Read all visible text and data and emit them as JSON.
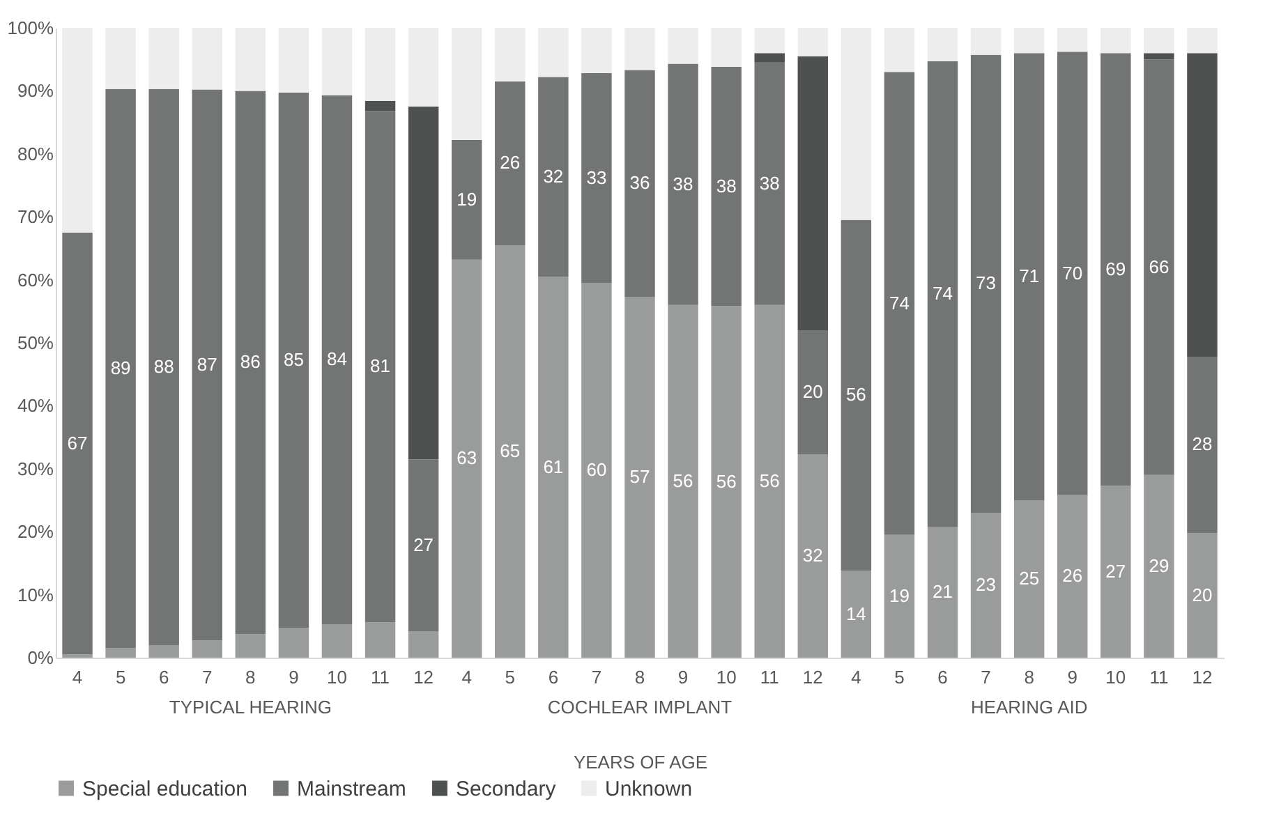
{
  "chart_data": {
    "type": "bar",
    "stacked": true,
    "xlabel": "YEARS OF AGE",
    "categories": [
      "4",
      "5",
      "6",
      "7",
      "8",
      "9",
      "10",
      "11",
      "12",
      "4",
      "5",
      "6",
      "7",
      "8",
      "9",
      "10",
      "11",
      "12",
      "4",
      "5",
      "6",
      "7",
      "8",
      "9",
      "10",
      "11",
      "12"
    ],
    "annotations": [
      "TYPICAL HEARING",
      "COCHLEAR IMPLANT",
      "HEARING AID"
    ],
    "series": [
      {
        "name": "Special education",
        "color": "#9a9b9b",
        "values": [
          0.5,
          1.5,
          2,
          2.7,
          3.7,
          4.7,
          5.3,
          5.6,
          4.2,
          63.2,
          65.5,
          60.5,
          59.5,
          57.3,
          56,
          55.8,
          56,
          32.3,
          13.8,
          19.5,
          20.7,
          23,
          25,
          25.8,
          27.3,
          29,
          19.8
        ],
        "value_labels": [
          null,
          null,
          null,
          null,
          null,
          null,
          null,
          null,
          null,
          "63",
          "65",
          "61",
          "60",
          "57",
          "56",
          "56",
          "56",
          "32",
          "14",
          "19",
          "21",
          "23",
          "25",
          "26",
          "27",
          "29",
          "20"
        ]
      },
      {
        "name": "Mainstream",
        "color": "#737575",
        "values": [
          67,
          88.8,
          88.3,
          87.5,
          86.3,
          85,
          84,
          81.2,
          27.3,
          19,
          26,
          31.7,
          33.3,
          36,
          38.3,
          38,
          38.5,
          19.7,
          55.7,
          73.5,
          74,
          72.7,
          71,
          70.4,
          68.7,
          66,
          28
        ],
        "value_labels": [
          "67",
          "89",
          "88",
          "87",
          "86",
          "85",
          "84",
          "81",
          "27",
          "19",
          "26",
          "32",
          "33",
          "36",
          "38",
          "38",
          "38",
          "20",
          "56",
          "74",
          "74",
          "73",
          "71",
          "70",
          "69",
          "66",
          "28"
        ]
      },
      {
        "name": "Secondary",
        "color": "#4f5050",
        "values": [
          null,
          null,
          null,
          null,
          null,
          null,
          null,
          1.6,
          56,
          null,
          null,
          null,
          null,
          null,
          null,
          null,
          1.5,
          43.5,
          null,
          null,
          null,
          null,
          null,
          null,
          null,
          1,
          48.2
        ]
      },
      {
        "name": "Unknown",
        "color": "#ededed",
        "values": [
          32.5,
          9.7,
          9.7,
          9.8,
          10,
          10.3,
          10.7,
          11.6,
          12.5,
          17.8,
          8.5,
          7.8,
          7.2,
          6.7,
          5.7,
          6.2,
          4,
          4.5,
          30.5,
          7,
          5.3,
          4.3,
          4,
          3.8,
          4,
          4,
          4
        ]
      }
    ],
    "ylim": [
      0,
      100
    ],
    "yticks": [
      {
        "value": 0,
        "label": "0%"
      },
      {
        "value": 10,
        "label": "10%"
      },
      {
        "value": 20,
        "label": "20%"
      },
      {
        "value": 30,
        "label": "30%"
      },
      {
        "value": 40,
        "label": "40%"
      },
      {
        "value": 50,
        "label": "50%"
      },
      {
        "value": 60,
        "label": "60%"
      },
      {
        "value": 70,
        "label": "70%"
      },
      {
        "value": 80,
        "label": "80%"
      },
      {
        "value": 90,
        "label": "90%"
      },
      {
        "value": 100,
        "label": "100%"
      }
    ],
    "grid": false,
    "legend": "bottom"
  }
}
